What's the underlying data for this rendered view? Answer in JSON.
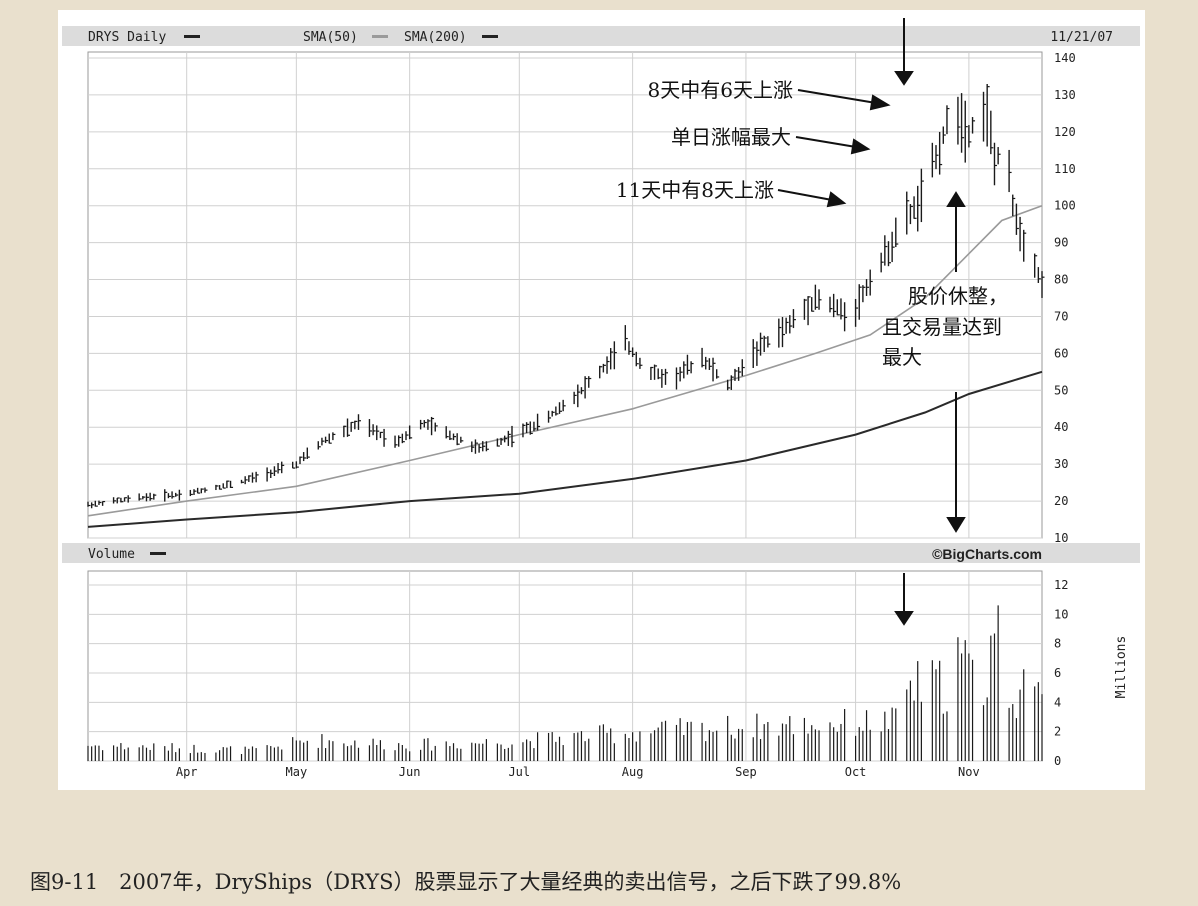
{
  "chart_header": {
    "ticker_label": "DRYS Daily",
    "sma50_label": "SMA(50)",
    "sma200_label": "SMA(200)",
    "date": "11/21/07"
  },
  "volume_header": {
    "label": "Volume",
    "watermark": "©BigCharts.com"
  },
  "annotations": {
    "a1": "8天中有6天上涨",
    "a2": "单日涨幅最大",
    "a3": "11天中有8天上涨",
    "a4_line1": "股价休整，",
    "a4_line2": "且交易量达到",
    "a4_line3": "最大"
  },
  "caption": "图9-11　2007年，DryShips（DRYS）股票显示了大量经典的卖出信号，之后下跌了99.8%",
  "colors": {
    "background": "#e9e0cd",
    "price_bars": "#1a1a1a",
    "sma50": "#9a9a9a",
    "sma200": "#2a2a2a",
    "grid": "#c8c8c8",
    "header_band": "#dcdcdc"
  },
  "chart_data": [
    {
      "type": "ohlc",
      "title": "",
      "y_axis_ticks": [
        10,
        20,
        30,
        40,
        50,
        60,
        70,
        80,
        90,
        100,
        110,
        120,
        130,
        140
      ],
      "ylim": [
        10,
        140
      ],
      "x_tick_labels": [
        "Apr",
        "May",
        "Jun",
        "Jul",
        "Aug",
        "Sep",
        "Oct",
        "Nov"
      ],
      "x_tick_dates": [
        "2007-04-01",
        "2007-05-01",
        "2007-06-01",
        "2007-07-01",
        "2007-08-01",
        "2007-09-01",
        "2007-10-01",
        "2007-11-01"
      ],
      "x_range": [
        "2007-03-05",
        "2007-11-21"
      ],
      "grid": true,
      "price_anchors": [
        [
          "2007-03-05",
          19
        ],
        [
          "2007-03-20",
          21
        ],
        [
          "2007-04-01",
          22
        ],
        [
          "2007-04-15",
          25
        ],
        [
          "2007-05-01",
          30
        ],
        [
          "2007-05-08",
          36
        ],
        [
          "2007-05-18",
          41
        ],
        [
          "2007-05-28",
          36
        ],
        [
          "2007-06-05",
          41
        ],
        [
          "2007-06-12",
          38
        ],
        [
          "2007-06-20",
          34
        ],
        [
          "2007-06-30",
          38
        ],
        [
          "2007-07-08",
          42
        ],
        [
          "2007-07-18",
          50
        ],
        [
          "2007-07-25",
          57
        ],
        [
          "2007-07-30",
          63
        ],
        [
          "2007-08-05",
          55
        ],
        [
          "2007-08-12",
          53
        ],
        [
          "2007-08-20",
          59
        ],
        [
          "2007-08-27",
          51
        ],
        [
          "2007-09-03",
          60
        ],
        [
          "2007-09-12",
          67
        ],
        [
          "2007-09-20",
          75
        ],
        [
          "2007-09-26",
          72
        ],
        [
          "2007-09-30",
          70
        ],
        [
          "2007-10-05",
          80
        ],
        [
          "2007-10-10",
          88
        ],
        [
          "2007-10-14",
          96
        ],
        [
          "2007-10-18",
          100
        ],
        [
          "2007-10-23",
          113
        ],
        [
          "2007-10-26",
          122
        ],
        [
          "2007-10-29",
          125
        ],
        [
          "2007-11-01",
          120
        ],
        [
          "2007-11-04",
          126
        ],
        [
          "2007-11-06",
          125
        ],
        [
          "2007-11-08",
          112
        ],
        [
          "2007-11-11",
          115
        ],
        [
          "2007-11-13",
          100
        ],
        [
          "2007-11-16",
          90
        ],
        [
          "2007-11-19",
          85
        ],
        [
          "2007-11-21",
          78
        ]
      ],
      "series": [
        {
          "name": "SMA(50)",
          "points": [
            [
              "2007-03-05",
              16
            ],
            [
              "2007-04-01",
              20
            ],
            [
              "2007-05-01",
              24
            ],
            [
              "2007-06-01",
              31
            ],
            [
              "2007-07-01",
              38
            ],
            [
              "2007-08-01",
              45
            ],
            [
              "2007-09-01",
              54
            ],
            [
              "2007-09-20",
              60
            ],
            [
              "2007-10-05",
              65
            ],
            [
              "2007-10-20",
              75
            ],
            [
              "2007-11-01",
              87
            ],
            [
              "2007-11-10",
              96
            ],
            [
              "2007-11-21",
              100
            ]
          ]
        },
        {
          "name": "SMA(200)",
          "points": [
            [
              "2007-03-05",
              13
            ],
            [
              "2007-04-01",
              15
            ],
            [
              "2007-05-01",
              17
            ],
            [
              "2007-06-01",
              20
            ],
            [
              "2007-07-01",
              22
            ],
            [
              "2007-08-01",
              26
            ],
            [
              "2007-09-01",
              31
            ],
            [
              "2007-10-01",
              38
            ],
            [
              "2007-10-20",
              44
            ],
            [
              "2007-11-01",
              49
            ],
            [
              "2007-11-21",
              55
            ]
          ]
        }
      ]
    },
    {
      "type": "bar",
      "title": "",
      "y_axis_ticks": [
        0,
        2,
        4,
        6,
        8,
        10,
        12
      ],
      "ylim": [
        0,
        12
      ],
      "ylabel": "Millions",
      "x_tick_labels": [
        "Apr",
        "May",
        "Jun",
        "Jul",
        "Aug",
        "Sep",
        "Oct",
        "Nov"
      ],
      "volume_anchors": [
        [
          "2007-03-05",
          1.2
        ],
        [
          "2007-04-20",
          0.8
        ],
        [
          "2007-05-05",
          1.6
        ],
        [
          "2007-06-01",
          1.2
        ],
        [
          "2007-07-01",
          1.5
        ],
        [
          "2007-08-01",
          2.2
        ],
        [
          "2007-09-01",
          2.6
        ],
        [
          "2007-10-01",
          2.9
        ],
        [
          "2007-10-12",
          3.0
        ],
        [
          "2007-10-15",
          5.6
        ],
        [
          "2007-10-26",
          5.8
        ],
        [
          "2007-10-29",
          8.0
        ],
        [
          "2007-11-05",
          5.2
        ],
        [
          "2007-11-08",
          10.8
        ],
        [
          "2007-11-12",
          5.5
        ],
        [
          "2007-11-21",
          4.5
        ]
      ]
    }
  ]
}
